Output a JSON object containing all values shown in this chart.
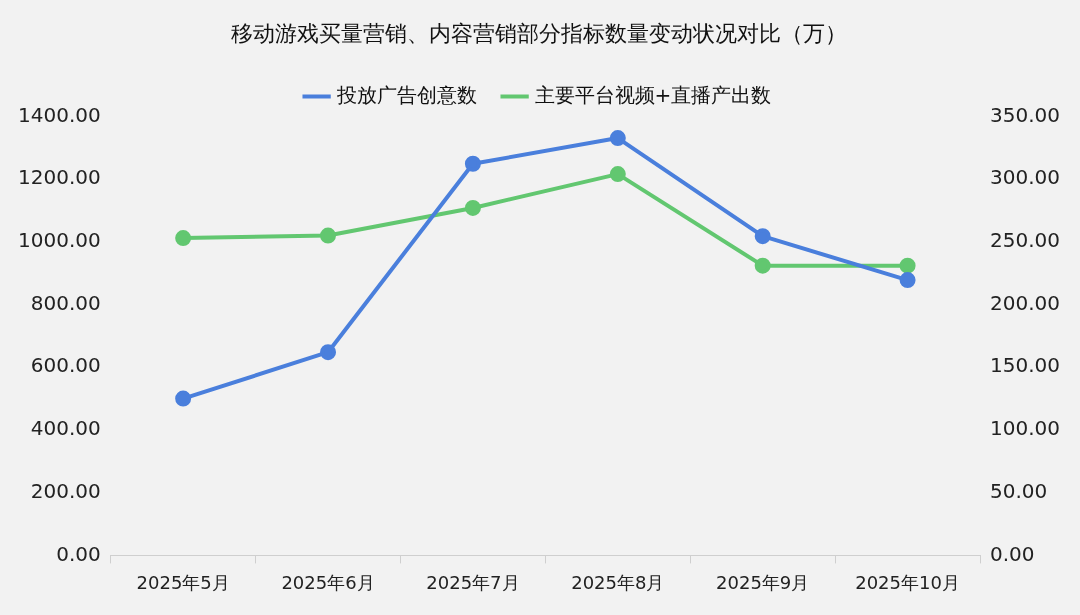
{
  "chart_data": {
    "type": "line",
    "title": "移动游戏买量营销、内容营销部分指标数量变动状况对比（万）",
    "categories": [
      "2025年5月",
      "2025年6月",
      "2025年7月",
      "2025年8月",
      "2025年9月",
      "2025年10月"
    ],
    "series": [
      {
        "name": "投放广告创意数",
        "color": "#4a7fdc",
        "values": [
          500,
          648,
          1249,
          1331,
          1018,
          878
        ]
      },
      {
        "name": "主要平台视频+直播产出数",
        "color": "#62c770",
        "values": [
          253,
          255,
          277,
          304,
          231,
          231
        ],
        "axis": "y2"
      }
    ],
    "ylim": [
      0,
      1400
    ],
    "yticks": [
      {
        "value": 0,
        "label": "0.00"
      },
      {
        "value": 200,
        "label": "200.00"
      },
      {
        "value": 400,
        "label": "400.00"
      },
      {
        "value": 600,
        "label": "600.00"
      },
      {
        "value": 800,
        "label": "800.00"
      },
      {
        "value": 1000,
        "label": "1000.00"
      },
      {
        "value": 1200,
        "label": "1200.00"
      },
      {
        "value": 1400,
        "label": "1400.00"
      }
    ],
    "y2lim": [
      0,
      350
    ],
    "y2ticks": [
      {
        "value": 0,
        "label": "0.00"
      },
      {
        "value": 50,
        "label": "50.00"
      },
      {
        "value": 100,
        "label": "100.00"
      },
      {
        "value": 150,
        "label": "150.00"
      },
      {
        "value": 200,
        "label": "200.00"
      },
      {
        "value": 250,
        "label": "250.00"
      },
      {
        "value": 300,
        "label": "300.00"
      },
      {
        "value": 350,
        "label": "350.00"
      }
    ],
    "grid": false,
    "legend": "top",
    "marker": "circle",
    "line_style": "solid"
  }
}
